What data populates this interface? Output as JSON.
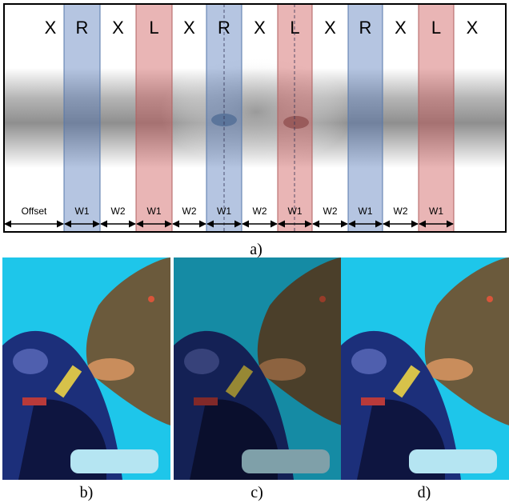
{
  "panel_a": {
    "letters": [
      "X",
      "R",
      "X",
      "L",
      "X",
      "R",
      "X",
      "L",
      "X",
      "R",
      "X",
      "L",
      "X"
    ],
    "widths": [
      "Offset",
      "W1",
      "W2",
      "W1",
      "W2",
      "W1",
      "W2",
      "W1",
      "W2",
      "W1",
      "W2",
      "W1"
    ],
    "caption": "a)"
  },
  "panels": [
    {
      "caption": "b)"
    },
    {
      "caption": "c)"
    },
    {
      "caption": "d)"
    }
  ]
}
